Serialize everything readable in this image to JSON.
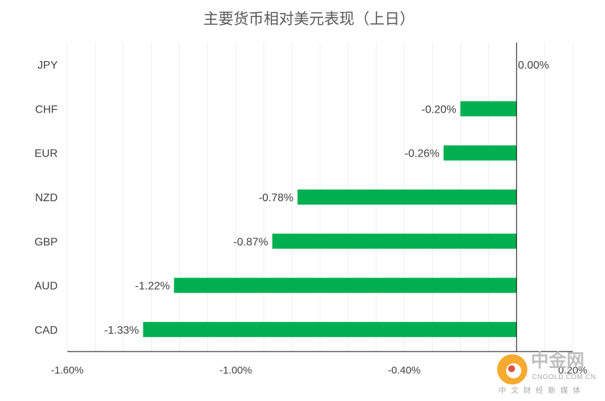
{
  "chart_data": {
    "type": "bar",
    "orientation": "horizontal",
    "title": "主要货币相对美元表现（上日）",
    "categories": [
      "JPY",
      "CHF",
      "EUR",
      "NZD",
      "GBP",
      "AUD",
      "CAD"
    ],
    "values": [
      0.0,
      -0.2,
      -0.26,
      -0.78,
      -0.87,
      -1.22,
      -1.33
    ],
    "data_labels": [
      "0.00%",
      "-0.20%",
      "-0.26%",
      "-0.78%",
      "-0.87%",
      "-1.22%",
      "-1.33%"
    ],
    "x_ticks": [
      "-1.60%",
      "-1.00%",
      "-0.40%",
      "0.20%"
    ],
    "xlim": [
      -1.6,
      0.2
    ],
    "grid": true,
    "bar_color": "#00b050",
    "xlabel": "",
    "ylabel": ""
  },
  "watermark": {
    "name": "中金网",
    "url": "CNGOLD.COM.CN",
    "tagline": "中文财经新媒体",
    "colors": [
      "#f6a21a",
      "#e2402c"
    ]
  }
}
